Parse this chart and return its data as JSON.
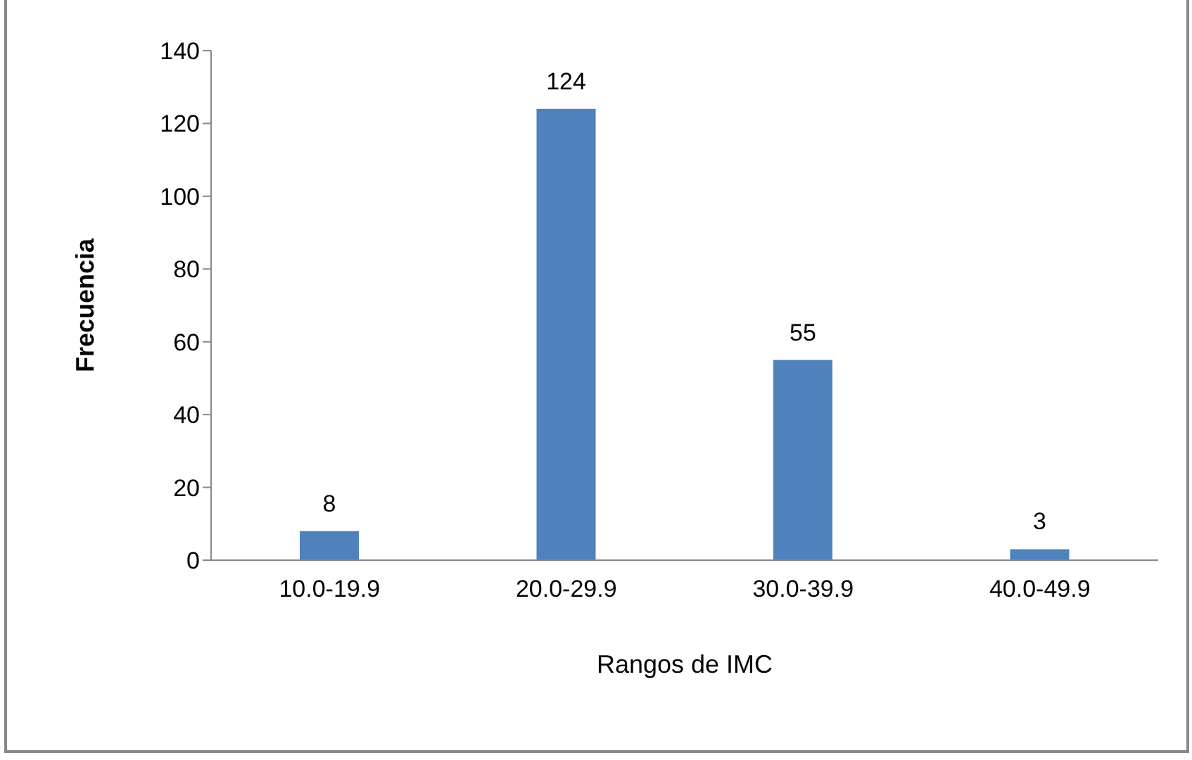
{
  "chart_data": {
    "type": "bar",
    "xlabel": "Rangos de IMC",
    "ylabel": "Frecuencia",
    "categories": [
      "10.0-19.9",
      "20.0-29.9",
      "30.0-39.9",
      "40.0-49.9"
    ],
    "values": [
      8,
      124,
      55,
      3
    ],
    "color": "#4f81bd",
    "ylim": [
      0,
      140
    ],
    "yticks": [
      0,
      20,
      40,
      60,
      80,
      100,
      120,
      140
    ],
    "grid": false,
    "data_labels": true,
    "legend": false
  }
}
